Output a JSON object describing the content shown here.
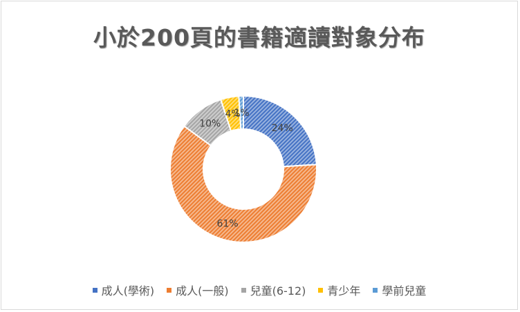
{
  "chart_data": {
    "type": "donut",
    "title": "小於200頁的書籍適讀對象分布",
    "categories": [
      "成人(學術)",
      "成人(一般)",
      "兒童(6-12)",
      "青少年",
      "學前兒童"
    ],
    "values": [
      24,
      61,
      10,
      4,
      1
    ],
    "data_labels": [
      "24%",
      "61%",
      "10%",
      "4%",
      "1%"
    ],
    "colors": [
      "#4472c4",
      "#ed7d31",
      "#a5a5a5",
      "#ffc000",
      "#5b9bd5"
    ],
    "legend_position": "bottom",
    "fill_pattern": "diagonal-hatch"
  }
}
